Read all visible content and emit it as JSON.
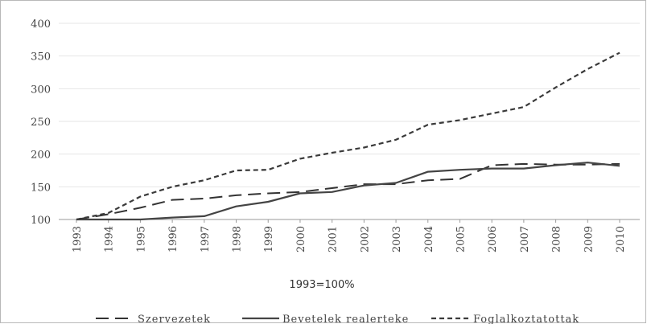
{
  "chart_data": {
    "type": "line",
    "x": [
      "1993",
      "1994",
      "1995",
      "1996",
      "1997",
      "1998",
      "1999",
      "2000",
      "2001",
      "2002",
      "2003",
      "2004",
      "2005",
      "2006",
      "2007",
      "2008",
      "2009",
      "2010"
    ],
    "ylim": [
      100,
      400
    ],
    "yticks": [
      100,
      150,
      200,
      250,
      300,
      350,
      400
    ],
    "grid": true,
    "legend_position": "bottom",
    "note": "1993=100%",
    "series": [
      {
        "name": "Szervezetek",
        "style": "long-dash",
        "color": "#333333",
        "values": [
          100,
          108,
          118,
          130,
          132,
          137,
          140,
          142,
          148,
          154,
          154,
          160,
          162,
          183,
          185,
          184,
          184,
          185
        ]
      },
      {
        "name": "Bevetelek realerteke",
        "style": "solid",
        "color": "#444444",
        "values": [
          100,
          100,
          100,
          103,
          105,
          120,
          127,
          140,
          142,
          152,
          156,
          173,
          176,
          178,
          178,
          183,
          187,
          182
        ]
      },
      {
        "name": "Foglalkoztatottak",
        "style": "short-dash",
        "color": "#3a3a3a",
        "values": [
          100,
          110,
          135,
          150,
          160,
          175,
          176,
          193,
          202,
          210,
          222,
          245,
          252,
          262,
          272,
          302,
          330,
          355
        ]
      }
    ]
  }
}
